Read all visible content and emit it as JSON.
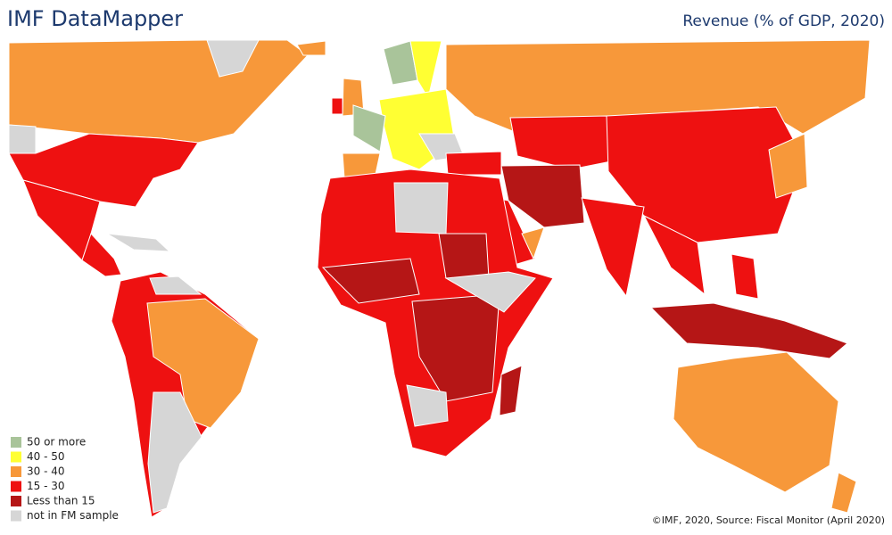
{
  "header": {
    "title": "IMF DataMapper",
    "indicator": "Revenue (% of GDP, 2020)"
  },
  "legend": {
    "items": [
      {
        "label": "50 or more",
        "color": "#a9c49a"
      },
      {
        "label": "40 - 50",
        "color": "#ffff33"
      },
      {
        "label": "30 - 40",
        "color": "#f7983a"
      },
      {
        "label": "15 - 30",
        "color": "#ee1111"
      },
      {
        "label": "Less than 15",
        "color": "#b51616"
      },
      {
        "label": "not in FM sample",
        "color": "#d6d6d6"
      }
    ]
  },
  "footer": {
    "source": "©IMF, 2020, Source: Fiscal Monitor (April 2020)"
  }
}
